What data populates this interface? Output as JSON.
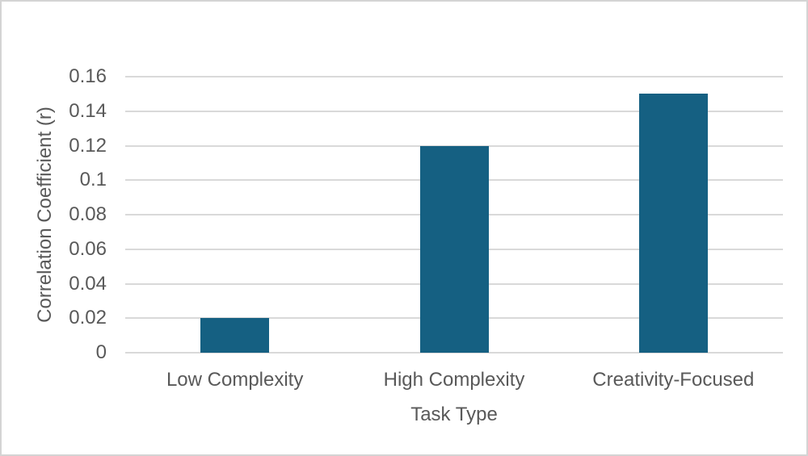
{
  "chart_data": {
    "type": "bar",
    "title": "",
    "categories": [
      "Low Complexity",
      "High Complexity",
      "Creativity-Focused"
    ],
    "values": [
      0.02,
      0.12,
      0.15
    ],
    "xlabel": "Task Type",
    "ylabel": "Correlation Coefficient (r)",
    "ylim": [
      0,
      0.16
    ],
    "yticks": [
      0,
      0.02,
      0.04,
      0.06,
      0.08,
      0.1,
      0.12,
      0.14,
      0.16
    ],
    "ytick_labels": [
      "0",
      "0.02",
      "0.04",
      "0.06",
      "0.08",
      "0.1",
      "0.12",
      "0.14",
      "0.16"
    ],
    "grid": true,
    "legend": "none"
  },
  "colors": {
    "bar": "#156082",
    "axis_text": "#595959",
    "gridline": "#d9d9d9",
    "frame_border": "#d4d4d4",
    "background": "#ffffff"
  }
}
